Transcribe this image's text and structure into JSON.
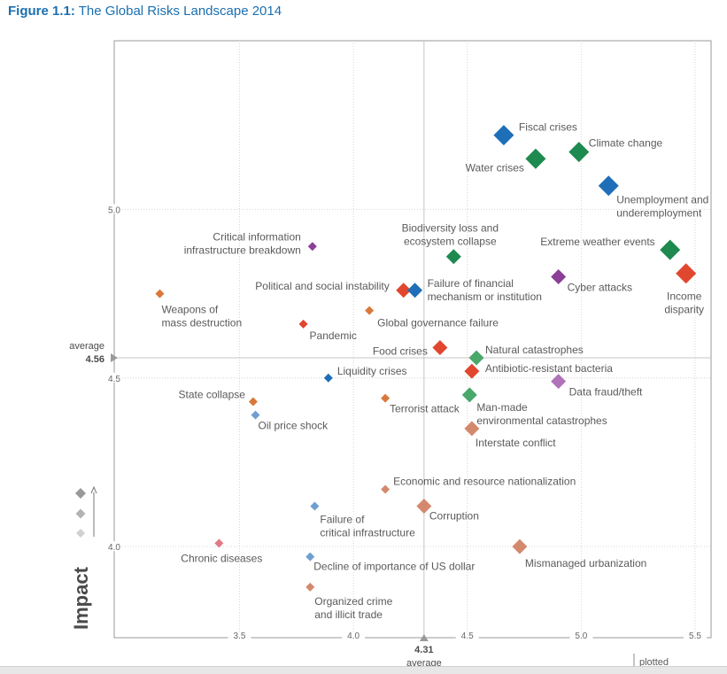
{
  "figure": {
    "number": "Figure 1.1:",
    "title": "The Global Risks Landscape 2014"
  },
  "footer": {
    "plotted": "plotted"
  },
  "chart_data": {
    "type": "scatter",
    "xlabel": "",
    "ylabel": "Impact",
    "xlim": [
      2.95,
      5.57
    ],
    "ylim": [
      3.73,
      5.5
    ],
    "x_ticks": [
      "3.5",
      "4.0",
      "4.5",
      "5.0",
      "5.5"
    ],
    "y_ticks": [
      "4.0",
      "4.5",
      "5.0"
    ],
    "grid": true,
    "average": {
      "x": 4.31,
      "x_label": "4.31",
      "y": 4.56,
      "y_label": "4.56",
      "word": "average"
    },
    "colors": {
      "economic": "#1f6fb8",
      "environmental": "#1e8a4f",
      "geopolitical": "#e0472e",
      "societal": "#8b3f96",
      "technological": "#d9783a",
      "peach": "#d4896e",
      "light_blue": "#6f9fd1",
      "pink": "#e07a86"
    },
    "points": [
      {
        "name": "Fiscal crises",
        "x": 4.66,
        "y": 5.22,
        "size": 3,
        "color": "#1f6fb8",
        "anchor": "start"
      },
      {
        "name": "Climate change",
        "x": 4.99,
        "y": 5.17,
        "size": 3,
        "color": "#1e8a4f",
        "anchor": "start"
      },
      {
        "name": "Water crises",
        "x": 4.8,
        "y": 5.15,
        "size": 3,
        "color": "#1e8a4f",
        "anchor": "end"
      },
      {
        "name": "Unemployment and underemployment",
        "lines": [
          "Unemployment and",
          "underemployment"
        ],
        "x": 5.12,
        "y": 5.07,
        "size": 3,
        "color": "#1f6fb8",
        "anchor": "start"
      },
      {
        "name": "Biodiversity loss and ecosystem collapse",
        "lines": [
          "Biodiversity loss and",
          "ecosystem collapse"
        ],
        "x": 4.44,
        "y": 4.86,
        "size": 2,
        "color": "#1e8a4f",
        "anchor": "middle"
      },
      {
        "name": "Extreme weather events",
        "x": 5.39,
        "y": 4.88,
        "size": 3,
        "color": "#1e8a4f",
        "anchor": "end"
      },
      {
        "name": "Income disparity",
        "lines": [
          "Income",
          "disparity"
        ],
        "x": 5.46,
        "y": 4.81,
        "size": 3,
        "color": "#e0472e",
        "anchor": "middle"
      },
      {
        "name": "Critical information infrastructure breakdown",
        "lines": [
          "Critical information",
          "infrastructure breakdown"
        ],
        "x": 3.82,
        "y": 4.89,
        "size": 1,
        "color": "#8b3f96",
        "anchor": "end"
      },
      {
        "name": "Cyber attacks",
        "x": 4.9,
        "y": 4.8,
        "size": 2,
        "color": "#8b3f96",
        "anchor": "start"
      },
      {
        "name": "Political and social instability",
        "x": 4.22,
        "y": 4.76,
        "size": 2,
        "color": "#e0472e",
        "anchor": "end"
      },
      {
        "name": "Failure of financial mechanism or institution",
        "lines": [
          "Failure of financial",
          "mechanism or institution"
        ],
        "x": 4.27,
        "y": 4.76,
        "size": 2,
        "color": "#1f6fb8",
        "anchor": "start"
      },
      {
        "name": "Weapons of mass destruction",
        "lines": [
          "Weapons of",
          "mass destruction"
        ],
        "x": 3.15,
        "y": 4.75,
        "size": 1,
        "color": "#d9783a",
        "anchor": "start"
      },
      {
        "name": "Global governance failure",
        "x": 4.07,
        "y": 4.7,
        "size": 1,
        "color": "#d9783a",
        "anchor": "start"
      },
      {
        "name": "Pandemic",
        "x": 3.78,
        "y": 4.66,
        "size": 1,
        "color": "#e0472e",
        "anchor": "start"
      },
      {
        "name": "Food crises",
        "x": 4.38,
        "y": 4.59,
        "size": 2,
        "color": "#e0472e",
        "anchor": "end"
      },
      {
        "name": "Natural catastrophes",
        "x": 4.54,
        "y": 4.56,
        "size": 2,
        "color": "#4aa86b",
        "anchor": "start"
      },
      {
        "name": "Antibiotic-resistant bacteria",
        "x": 4.52,
        "y": 4.52,
        "size": 2,
        "color": "#e0472e",
        "anchor": "start"
      },
      {
        "name": "Liquidity crises",
        "x": 3.89,
        "y": 4.5,
        "size": 1,
        "color": "#1f6fb8",
        "anchor": "start"
      },
      {
        "name": "Data fraud/theft",
        "x": 4.9,
        "y": 4.49,
        "size": 2,
        "color": "#b073b8",
        "anchor": "start"
      },
      {
        "name": "State collapse",
        "x": 3.56,
        "y": 4.43,
        "size": 1,
        "color": "#d9783a",
        "anchor": "end"
      },
      {
        "name": "Terrorist attack",
        "x": 4.14,
        "y": 4.44,
        "size": 1,
        "color": "#d9783a",
        "anchor": "start"
      },
      {
        "name": "Man-made environmental catastrophes",
        "lines": [
          "Man-made",
          "environmental catastrophes"
        ],
        "x": 4.51,
        "y": 4.45,
        "size": 2,
        "color": "#4aa86b",
        "anchor": "start"
      },
      {
        "name": "Oil price shock",
        "x": 3.57,
        "y": 4.39,
        "size": 1,
        "color": "#6f9fd1",
        "anchor": "start"
      },
      {
        "name": "Interstate conflict",
        "x": 4.52,
        "y": 4.35,
        "size": 2,
        "color": "#d4896e",
        "anchor": "start"
      },
      {
        "name": "Economic and resource nationalization",
        "x": 4.14,
        "y": 4.17,
        "size": 1,
        "color": "#d4896e",
        "anchor": "start"
      },
      {
        "name": "Failure of critical infrastructure",
        "lines": [
          "Failure of",
          "critical infrastructure"
        ],
        "x": 3.83,
        "y": 4.12,
        "size": 1,
        "color": "#6f9fd1",
        "anchor": "start"
      },
      {
        "name": "Corruption",
        "x": 4.31,
        "y": 4.12,
        "size": 2,
        "color": "#d4896e",
        "anchor": "start"
      },
      {
        "name": "Chronic diseases",
        "x": 3.41,
        "y": 4.01,
        "size": 1,
        "color": "#e07a86",
        "anchor": "middle"
      },
      {
        "name": "Mismanaged urbanization",
        "x": 4.73,
        "y": 4.0,
        "size": 2,
        "color": "#d4896e",
        "anchor": "start"
      },
      {
        "name": "Decline of importance of US dollar",
        "x": 3.81,
        "y": 3.97,
        "size": 1,
        "color": "#6f9fd1",
        "anchor": "start"
      },
      {
        "name": "Organized crime and illicit trade",
        "lines": [
          "Organized crime",
          "and illicit trade"
        ],
        "x": 3.81,
        "y": 3.88,
        "size": 1,
        "color": "#d4896e",
        "anchor": "start"
      }
    ]
  }
}
